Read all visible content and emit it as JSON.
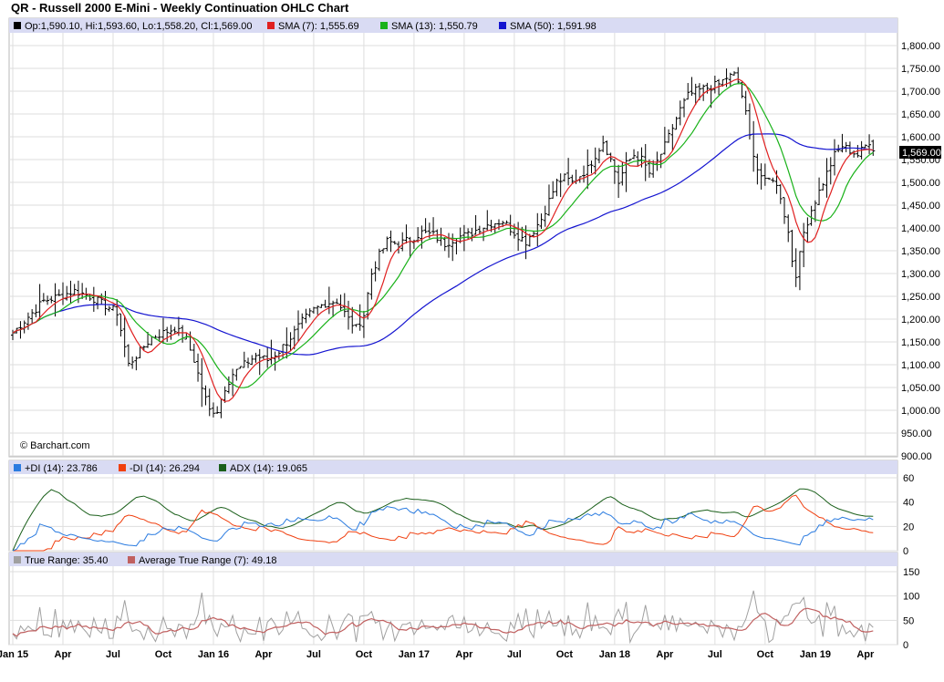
{
  "title": "QR - Russell 2000 E-Mini - Weekly Continuation OHLC Chart",
  "watermark": "© Barchart.com",
  "colors": {
    "background": "#ffffff",
    "grid": "#dedede",
    "legend_bg": "#d9dbf3",
    "sma7": "#e02020",
    "sma13": "#19b219",
    "sma50": "#1414d0",
    "plus_di": "#2a7be0",
    "minus_di": "#f04010",
    "adx": "#1a5f1a",
    "true_range": "#a0a0a0",
    "atr": "#c06060"
  },
  "chart_data": [
    {
      "type": "ohlc",
      "panel": "price",
      "title": "QR - Russell 2000 E-Mini - Weekly Continuation OHLC Chart",
      "ylim": [
        900,
        1800
      ],
      "yticks": [
        "900.00",
        "950.00",
        "1,000.00",
        "1,050.00",
        "1,100.00",
        "1,150.00",
        "1,200.00",
        "1,250.00",
        "1,300.00",
        "1,350.00",
        "1,400.00",
        "1,450.00",
        "1,500.00",
        "1,550.00",
        "1,600.00",
        "1,650.00",
        "1,700.00",
        "1,750.00",
        "1,800.00"
      ],
      "last_price_label": "1,569.00",
      "legend": {
        "ohlc": "Op:1,590.10, Hi:1,593.60, Lo:1,558.20, Cl:1,569.00",
        "sma7": "SMA (7): 1,555.69",
        "sma13": "SMA (13): 1,550.79",
        "sma50": "SMA (50): 1,591.98"
      },
      "close_anchors": [
        [
          0,
          1170
        ],
        [
          4,
          1205
        ],
        [
          8,
          1240
        ],
        [
          12,
          1250
        ],
        [
          16,
          1262
        ],
        [
          20,
          1250
        ],
        [
          24,
          1230
        ],
        [
          27,
          1215
        ],
        [
          30,
          1100
        ],
        [
          33,
          1130
        ],
        [
          36,
          1160
        ],
        [
          39,
          1170
        ],
        [
          42,
          1180
        ],
        [
          45,
          1155
        ],
        [
          47,
          1110
        ],
        [
          49,
          1050
        ],
        [
          51,
          1000
        ],
        [
          53,
          1000
        ],
        [
          55,
          1050
        ],
        [
          57,
          1080
        ],
        [
          60,
          1100
        ],
        [
          63,
          1120
        ],
        [
          66,
          1110
        ],
        [
          69,
          1130
        ],
        [
          72,
          1160
        ],
        [
          75,
          1195
        ],
        [
          78,
          1220
        ],
        [
          81,
          1235
        ],
        [
          84,
          1240
        ],
        [
          87,
          1200
        ],
        [
          89,
          1180
        ],
        [
          91,
          1210
        ],
        [
          93,
          1300
        ],
        [
          95,
          1340
        ],
        [
          97,
          1370
        ],
        [
          100,
          1365
        ],
        [
          103,
          1375
        ],
        [
          106,
          1390
        ],
        [
          109,
          1385
        ],
        [
          112,
          1365
        ],
        [
          115,
          1380
        ],
        [
          118,
          1385
        ],
        [
          121,
          1400
        ],
        [
          124,
          1410
        ],
        [
          127,
          1415
        ],
        [
          130,
          1390
        ],
        [
          133,
          1370
        ],
        [
          135,
          1395
        ],
        [
          137,
          1420
        ],
        [
          139,
          1460
        ],
        [
          141,
          1500
        ],
        [
          143,
          1510
        ],
        [
          145,
          1500
        ],
        [
          147,
          1515
        ],
        [
          149,
          1530
        ],
        [
          151,
          1560
        ],
        [
          153,
          1590
        ],
        [
          155,
          1550
        ],
        [
          157,
          1500
        ],
        [
          159,
          1540
        ],
        [
          161,
          1560
        ],
        [
          163,
          1550
        ],
        [
          165,
          1520
        ],
        [
          167,
          1545
        ],
        [
          169,
          1580
        ],
        [
          171,
          1620
        ],
        [
          173,
          1660
        ],
        [
          175,
          1690
        ],
        [
          177,
          1700
        ],
        [
          179,
          1705
        ],
        [
          181,
          1710
        ],
        [
          183,
          1715
        ],
        [
          185,
          1730
        ],
        [
          187,
          1735
        ],
        [
          188,
          1720
        ],
        [
          189,
          1690
        ],
        [
          190,
          1650
        ],
        [
          191,
          1600
        ],
        [
          193,
          1530
        ],
        [
          195,
          1500
        ],
        [
          197,
          1510
        ],
        [
          199,
          1470
        ],
        [
          201,
          1390
        ],
        [
          202,
          1330
        ],
        [
          203,
          1300
        ],
        [
          204,
          1340
        ],
        [
          205,
          1390
        ],
        [
          207,
          1440
        ],
        [
          209,
          1480
        ],
        [
          211,
          1520
        ],
        [
          213,
          1560
        ],
        [
          215,
          1580
        ],
        [
          217,
          1570
        ],
        [
          219,
          1560
        ],
        [
          221,
          1580
        ],
        [
          222,
          1590
        ],
        [
          223,
          1569
        ]
      ],
      "series": [
        {
          "name": "SMA (7)",
          "last": 1555.69
        },
        {
          "name": "SMA (13)",
          "last": 1550.79
        },
        {
          "name": "SMA (50)",
          "last": 1591.98
        }
      ]
    },
    {
      "type": "line",
      "panel": "dmi",
      "ylim": [
        0,
        60
      ],
      "yticks": [
        "0",
        "20",
        "40",
        "60"
      ],
      "legend": {
        "plus_di": "+DI (14): 23.786",
        "minus_di": "-DI (14): 26.294",
        "adx": "ADX (14): 19.065"
      },
      "series": [
        {
          "name": "+DI (14)",
          "last": 23.786
        },
        {
          "name": "-DI (14)",
          "last": 26.294
        },
        {
          "name": "ADX (14)",
          "last": 19.065
        }
      ]
    },
    {
      "type": "line",
      "panel": "true_range",
      "ylim": [
        0,
        150
      ],
      "yticks": [
        "0",
        "50",
        "100",
        "150"
      ],
      "legend": {
        "tr": "True Range: 35.40",
        "atr": "Average True Range (7): 49.18"
      },
      "series": [
        {
          "name": "True Range",
          "last": 35.4
        },
        {
          "name": "Average True Range (7)",
          "last": 49.18
        }
      ]
    }
  ],
  "x_axis": {
    "labels": [
      {
        "text": "Jan 15",
        "week": 0
      },
      {
        "text": "Apr",
        "week": 13
      },
      {
        "text": "Jul",
        "week": 26
      },
      {
        "text": "Oct",
        "week": 39
      },
      {
        "text": "Jan 16",
        "week": 52
      },
      {
        "text": "Apr",
        "week": 65
      },
      {
        "text": "Jul",
        "week": 78
      },
      {
        "text": "Oct",
        "week": 91
      },
      {
        "text": "Jan 17",
        "week": 104
      },
      {
        "text": "Apr",
        "week": 117
      },
      {
        "text": "Jul",
        "week": 130
      },
      {
        "text": "Oct",
        "week": 143
      },
      {
        "text": "Jan 18",
        "week": 156
      },
      {
        "text": "Apr",
        "week": 169
      },
      {
        "text": "Jul",
        "week": 182
      },
      {
        "text": "Oct",
        "week": 195
      },
      {
        "text": "Jan 19",
        "week": 208
      },
      {
        "text": "Apr",
        "week": 221
      }
    ]
  }
}
